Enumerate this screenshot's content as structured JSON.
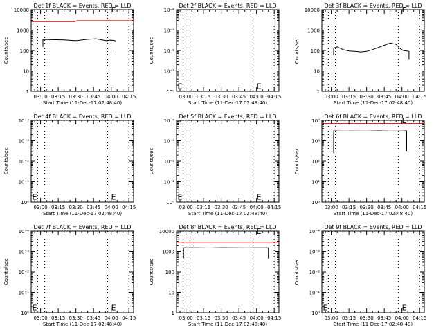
{
  "colors": {
    "events": "#000000",
    "lld": "#e00000",
    "frame": "#000000",
    "background": "#ffffff"
  },
  "shared": {
    "xlabel": "Start Time (11-Dec-17 02:48:40)",
    "ylabel": "Counts/sec",
    "x_tick_labels": [
      "03:00",
      "03:15",
      "03:30",
      "03:45",
      "04:00",
      "04:15"
    ],
    "x_tick_minutes": [
      0,
      15,
      30,
      45,
      60,
      75
    ],
    "xlim_minutes": [
      -8,
      79
    ],
    "vlines_minutes": [
      -2.5,
      3.5,
      57,
      75
    ],
    "e_marker_minutes": 62
  },
  "chart_data": [
    {
      "type": "line",
      "title": "Det 1f BLACK = Events, RED = LLD",
      "ylim_decades": [
        0,
        4
      ],
      "y_tick_labels": [
        "1",
        "10",
        "100",
        "1000",
        "10000"
      ],
      "e_marker_log": 4.0,
      "series": [
        {
          "role": "lld",
          "x": [
            -8,
            29,
            31,
            79
          ],
          "y": [
            2600,
            2600,
            2900,
            2900
          ]
        },
        {
          "role": "events",
          "x": [
            2,
            2,
            6,
            20,
            30,
            40,
            47,
            52,
            56,
            59,
            62,
            64,
            64
          ],
          "y": [
            150,
            340,
            340,
            330,
            300,
            350,
            375,
            330,
            300,
            320,
            310,
            290,
            80
          ]
        }
      ]
    },
    {
      "type": "line",
      "title": "Det 2f BLACK = Events, RED = LLD",
      "ylim_decades": [
        0,
        4
      ],
      "y_tick_labels": [
        "10⁰",
        "10⁻¹",
        "10⁻²",
        "10⁻³",
        "10⁻⁴"
      ],
      "e_marker_log": 0.25,
      "left_marker": "E",
      "series": []
    },
    {
      "type": "line",
      "title": "Det 3f BLACK = Events, RED = LLD",
      "ylim_decades": [
        0,
        4
      ],
      "y_tick_labels": [
        "1",
        "10",
        "100",
        "1000",
        "10000"
      ],
      "e_marker_log": 4.0,
      "series": [
        {
          "role": "events",
          "x": [
            2,
            2,
            5,
            10,
            15,
            20,
            25,
            30,
            35,
            40,
            45,
            50,
            55,
            58,
            61,
            64,
            66,
            66
          ],
          "y": [
            60,
            130,
            150,
            110,
            95,
            90,
            85,
            90,
            110,
            140,
            180,
            230,
            200,
            130,
            100,
            95,
            90,
            35
          ]
        }
      ]
    },
    {
      "type": "line",
      "title": "Det 4f BLACK = Events, RED = LLD",
      "ylim_decades": [
        0,
        4
      ],
      "y_tick_labels": [
        "10⁰",
        "10⁻¹",
        "10⁻²",
        "10⁻³",
        "10⁻⁴"
      ],
      "e_marker_log": 0.25,
      "left_marker": "E",
      "series": []
    },
    {
      "type": "line",
      "title": "Det 5f BLACK = Events, RED = LLD",
      "ylim_decades": [
        0,
        4
      ],
      "y_tick_labels": [
        "10⁰",
        "10⁻¹",
        "10⁻²",
        "10⁻³",
        "10⁻⁴"
      ],
      "e_marker_log": 0.25,
      "left_marker": "E",
      "series": []
    },
    {
      "type": "line",
      "title": "Det 6f BLACK = Events, RED = LLD",
      "ylim_decades": [
        0,
        4
      ],
      "y_tick_labels": [
        "10⁰",
        "10¹",
        "10²",
        "10³",
        "10⁴"
      ],
      "e_marker_log": 4.0,
      "series": [
        {
          "role": "lld",
          "x": [
            -8,
            79
          ],
          "y": [
            7000,
            7000
          ]
        },
        {
          "role": "events",
          "x": [
            2,
            2,
            10,
            20,
            30,
            40,
            50,
            60,
            64,
            64
          ],
          "y": [
            250,
            3100,
            3000,
            3050,
            3000,
            3100,
            3000,
            3050,
            3100,
            300
          ]
        }
      ]
    },
    {
      "type": "line",
      "title": "Det 7f BLACK = Events, RED = LLD",
      "ylim_decades": [
        0,
        4
      ],
      "y_tick_labels": [
        "10⁰",
        "10⁻¹",
        "10⁻²",
        "10⁻³",
        "10⁻⁴"
      ],
      "e_marker_log": 0.25,
      "left_marker": "E",
      "series": []
    },
    {
      "type": "line",
      "title": "Det 8f BLACK = Events, RED = LLD",
      "ylim_decades": [
        0,
        4
      ],
      "y_tick_labels": [
        "1",
        "10",
        "100",
        "1000",
        "10000"
      ],
      "e_marker_log": 4.0,
      "series": [
        {
          "role": "lld",
          "x": [
            -8,
            79
          ],
          "y": [
            2600,
            2600
          ]
        },
        {
          "role": "events",
          "x": [
            -2,
            -2,
            10,
            20,
            30,
            40,
            50,
            60,
            70,
            70
          ],
          "y": [
            450,
            1500,
            1500,
            1480,
            1520,
            1500,
            1490,
            1510,
            1500,
            450
          ]
        }
      ]
    },
    {
      "type": "line",
      "title": "Det 9f BLACK = Events, RED = LLD",
      "ylim_decades": [
        0,
        4
      ],
      "y_tick_labels": [
        "10⁰",
        "10⁻¹",
        "10⁻²",
        "10⁻³",
        "10⁻⁴"
      ],
      "e_marker_log": 0.25,
      "left_marker": "E",
      "series": []
    }
  ]
}
